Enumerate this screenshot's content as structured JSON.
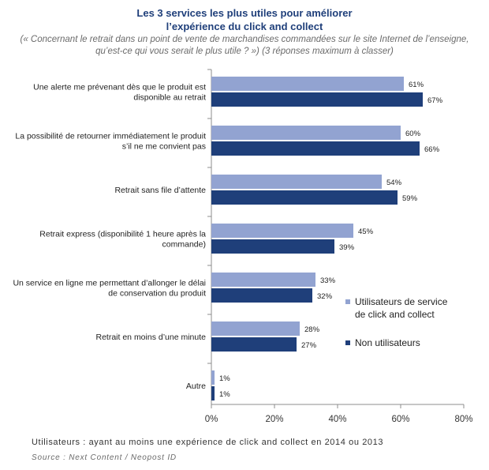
{
  "header": {
    "title_line1": "Les 3 services les plus utiles pour améliorer",
    "title_line2": "l’expérience du click and collect",
    "subtitle_line1": "(« Concernant le retrait dans un point de vente de marchandises commandées sur le site Internet de l’enseigne,",
    "subtitle_line2": "qu’est-ce qui vous serait le plus utile ? ») (3 réponses maximum à classer)"
  },
  "chart_data": {
    "type": "bar",
    "orientation": "horizontal",
    "categories": [
      [
        "Une alerte me prévenant dès que le produit est",
        "disponible au retrait"
      ],
      [
        "La possibilité de retourner immédiatement le produit",
        "s’il ne me convient pas"
      ],
      [
        "Retrait sans file d’attente"
      ],
      [
        "Retrait express (disponibilité 1 heure après la",
        "commande)"
      ],
      [
        "Un service en ligne me permettant d’allonger le délai",
        "de conservation du produit"
      ],
      [
        "Retrait en moins d’une minute"
      ],
      [
        "Autre"
      ]
    ],
    "series": [
      {
        "name": "Utilisateurs de service de click and collect",
        "legend_lines": [
          "Utilisateurs de service",
          "de click and collect"
        ],
        "color": "#92a3d1",
        "values": [
          61,
          60,
          54,
          45,
          33,
          28,
          1
        ]
      },
      {
        "name": "Non utilisateurs",
        "legend_lines": [
          "Non utilisateurs"
        ],
        "color": "#1f3f7a",
        "values": [
          67,
          66,
          59,
          39,
          32,
          27,
          1
        ]
      }
    ],
    "value_suffix": "%",
    "xlim": [
      0,
      80
    ],
    "xticks": [
      0,
      20,
      40,
      60,
      80
    ],
    "xtick_labels": [
      "0%",
      "20%",
      "40%",
      "60%",
      "80%"
    ],
    "grid": false,
    "legend_position": "right"
  },
  "footer": {
    "note": "Utilisateurs : ayant au moins une expérience de click and collect en 2014 ou 2013",
    "source": "Source : Next Content / Neopost ID"
  }
}
